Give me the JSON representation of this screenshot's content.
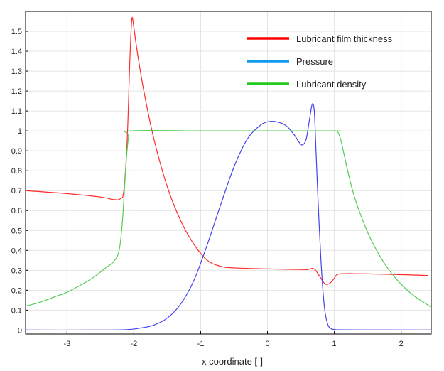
{
  "chart_data": {
    "type": "line",
    "xlabel": "x coordinate [-]",
    "ylabel": "",
    "xlim": [
      -3.62,
      2.45
    ],
    "ylim": [
      -0.02,
      1.6
    ],
    "xticks": [
      -3,
      -2,
      -1,
      0,
      1,
      2
    ],
    "yticks": [
      0,
      0.1,
      0.2,
      0.3,
      0.4,
      0.5,
      0.6,
      0.7,
      0.8,
      0.9,
      1,
      1.1,
      1.2,
      1.3,
      1.4,
      1.5
    ],
    "grid": true,
    "legend_position": "top-right",
    "series": [
      {
        "name": "Lubricant film thickness",
        "color": "#ff2a2a",
        "legend_color": "#ff0000",
        "points": [
          [
            -3.62,
            0.7
          ],
          [
            -3.0,
            0.685
          ],
          [
            -2.5,
            0.668
          ],
          [
            -2.3,
            0.655
          ],
          [
            -2.2,
            0.66
          ],
          [
            -2.15,
            0.7
          ],
          [
            -2.1,
            0.95
          ],
          [
            -2.06,
            1.35
          ],
          [
            -2.03,
            1.56
          ],
          [
            -2.0,
            1.52
          ],
          [
            -1.95,
            1.4
          ],
          [
            -1.85,
            1.2
          ],
          [
            -1.7,
            0.96
          ],
          [
            -1.5,
            0.72
          ],
          [
            -1.3,
            0.55
          ],
          [
            -1.1,
            0.43
          ],
          [
            -0.9,
            0.35
          ],
          [
            -0.7,
            0.32
          ],
          [
            -0.5,
            0.312
          ],
          [
            0.0,
            0.307
          ],
          [
            0.3,
            0.305
          ],
          [
            0.5,
            0.304
          ],
          [
            0.6,
            0.304
          ],
          [
            0.65,
            0.308
          ],
          [
            0.68,
            0.31
          ],
          [
            0.72,
            0.3
          ],
          [
            0.78,
            0.27
          ],
          [
            0.85,
            0.235
          ],
          [
            0.9,
            0.23
          ],
          [
            0.95,
            0.24
          ],
          [
            1.0,
            0.26
          ],
          [
            1.05,
            0.28
          ],
          [
            1.2,
            0.283
          ],
          [
            1.5,
            0.282
          ],
          [
            2.0,
            0.278
          ],
          [
            2.4,
            0.274
          ]
        ]
      },
      {
        "name": "Pressure",
        "color": "#4444ee",
        "legend_color": "#1199ee",
        "points": [
          [
            -3.62,
            0.0
          ],
          [
            -2.5,
            0.0
          ],
          [
            -2.1,
            0.002
          ],
          [
            -1.9,
            0.01
          ],
          [
            -1.7,
            0.025
          ],
          [
            -1.5,
            0.06
          ],
          [
            -1.3,
            0.13
          ],
          [
            -1.1,
            0.25
          ],
          [
            -0.9,
            0.43
          ],
          [
            -0.7,
            0.63
          ],
          [
            -0.5,
            0.82
          ],
          [
            -0.3,
            0.96
          ],
          [
            -0.1,
            1.03
          ],
          [
            0.05,
            1.048
          ],
          [
            0.2,
            1.04
          ],
          [
            0.3,
            1.02
          ],
          [
            0.4,
            0.98
          ],
          [
            0.48,
            0.94
          ],
          [
            0.53,
            0.93
          ],
          [
            0.58,
            0.96
          ],
          [
            0.63,
            1.06
          ],
          [
            0.67,
            1.135
          ],
          [
            0.7,
            1.1
          ],
          [
            0.72,
            0.95
          ],
          [
            0.75,
            0.7
          ],
          [
            0.8,
            0.35
          ],
          [
            0.85,
            0.12
          ],
          [
            0.9,
            0.03
          ],
          [
            0.95,
            0.008
          ],
          [
            1.0,
            0.003
          ],
          [
            1.2,
            0.001
          ],
          [
            2.45,
            0.0
          ]
        ]
      },
      {
        "name": "Lubricant density",
        "color": "#55cc55",
        "legend_color": "#22cc22",
        "points": [
          [
            -3.62,
            0.12
          ],
          [
            -3.4,
            0.14
          ],
          [
            -3.2,
            0.165
          ],
          [
            -3.0,
            0.19
          ],
          [
            -2.8,
            0.225
          ],
          [
            -2.6,
            0.265
          ],
          [
            -2.45,
            0.305
          ],
          [
            -2.3,
            0.345
          ],
          [
            -2.22,
            0.4
          ],
          [
            -2.17,
            0.55
          ],
          [
            -2.12,
            0.82
          ],
          [
            -2.08,
            0.97
          ],
          [
            -2.05,
            1.0
          ],
          [
            -1.0,
            1.0
          ],
          [
            0.0,
            1.0
          ],
          [
            1.0,
            1.0
          ],
          [
            1.05,
            0.995
          ],
          [
            1.1,
            0.95
          ],
          [
            1.2,
            0.8
          ],
          [
            1.3,
            0.67
          ],
          [
            1.45,
            0.53
          ],
          [
            1.6,
            0.42
          ],
          [
            1.8,
            0.31
          ],
          [
            2.0,
            0.23
          ],
          [
            2.2,
            0.17
          ],
          [
            2.45,
            0.115
          ]
        ]
      }
    ]
  }
}
